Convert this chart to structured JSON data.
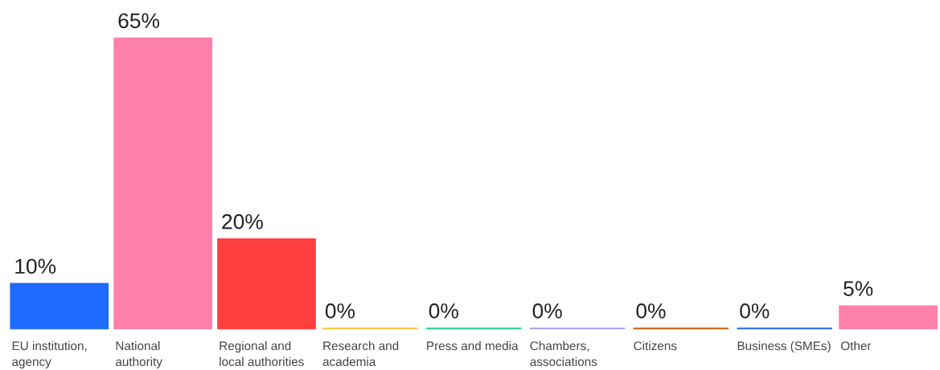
{
  "chart_data": {
    "type": "bar",
    "categories": [
      "EU institution, agency",
      "National authority",
      "Regional and local authorities",
      "Research and academia",
      "Press and media",
      "Chambers, associations",
      "Citizens",
      "Business (SMEs)",
      "Other"
    ],
    "values": [
      10,
      65,
      20,
      0,
      0,
      0,
      0,
      0,
      5
    ],
    "value_labels": [
      "10%",
      "65%",
      "20%",
      "0%",
      "0%",
      "0%",
      "0%",
      "0%",
      "5%"
    ],
    "colors": [
      "#1f6bff",
      "#ff80aa",
      "#ff3e3e",
      "#ffc235",
      "#1ed68c",
      "#a59ff0",
      "#c9600c",
      "#2268f0",
      "#ff80aa"
    ],
    "data_labels": false
  }
}
